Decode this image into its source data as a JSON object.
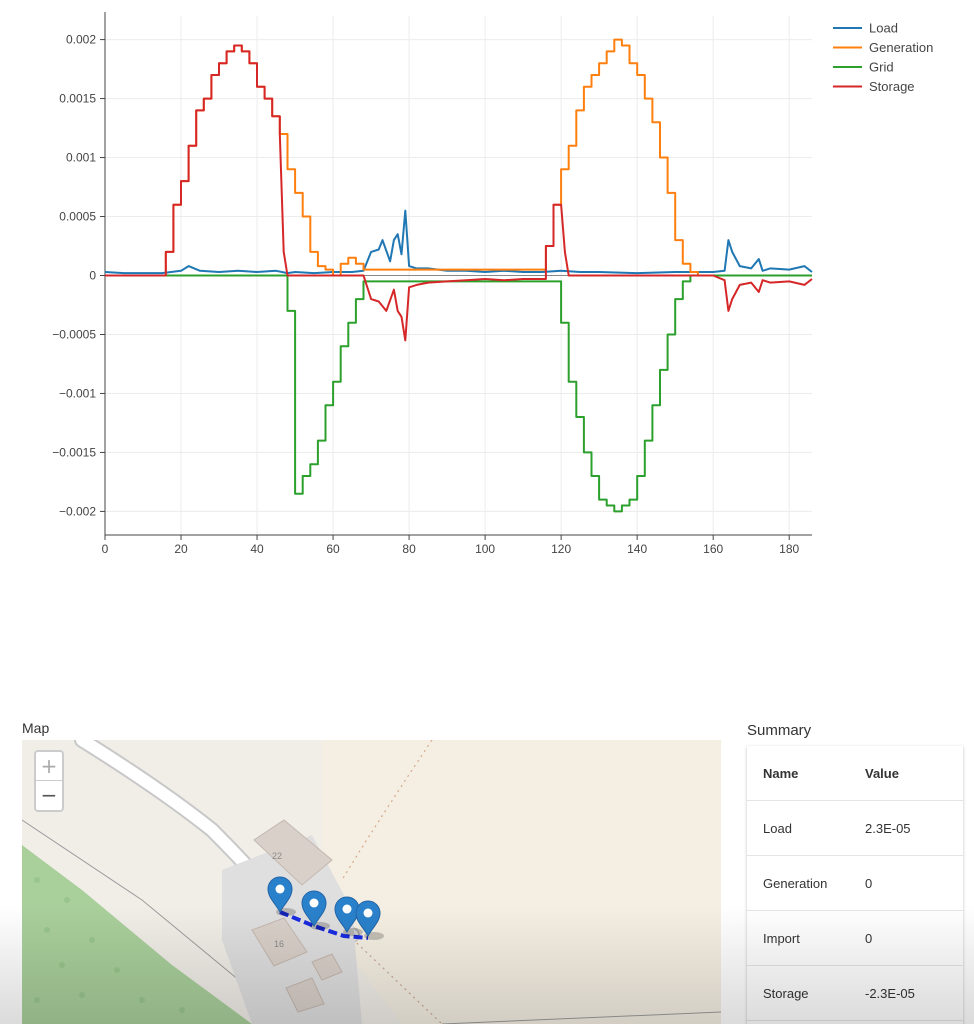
{
  "chart_data": {
    "type": "line",
    "title": "",
    "xlabel": "",
    "ylabel": "",
    "xlim": [
      0,
      186
    ],
    "ylim": [
      -0.0022,
      0.0022
    ],
    "x_ticks": [
      0,
      20,
      40,
      60,
      80,
      100,
      120,
      140,
      160,
      180
    ],
    "y_ticks": [
      0.002,
      0.0015,
      0.001,
      0.0005,
      0,
      -0.0005,
      -0.001,
      -0.0015,
      -0.002
    ],
    "y_tick_labels": [
      "0.002",
      "0.0015",
      "0.001",
      "0.0005",
      "0",
      "−0.0005",
      "−0.001",
      "−0.0015",
      "−0.002"
    ],
    "x_tick_labels": [
      "0",
      "20",
      "40",
      "60",
      "80",
      "100",
      "120",
      "140",
      "160",
      "180"
    ],
    "grid": true,
    "legend_position": "top-right",
    "series": [
      {
        "name": "Load",
        "color": "#1f77b4",
        "x": [
          0,
          5,
          10,
          15,
          20,
          22,
          25,
          30,
          35,
          40,
          45,
          48,
          50,
          55,
          60,
          65,
          68,
          70,
          72,
          73,
          75,
          76,
          77,
          78,
          79,
          80,
          82,
          85,
          90,
          95,
          100,
          105,
          110,
          115,
          120,
          125,
          130,
          140,
          150,
          160,
          163,
          164,
          165,
          167,
          170,
          172,
          173,
          175,
          180,
          184,
          186
        ],
        "y": [
          3e-05,
          2e-05,
          2e-05,
          2e-05,
          4e-05,
          8e-05,
          4e-05,
          3e-05,
          4e-05,
          3e-05,
          4e-05,
          2e-05,
          3e-05,
          2e-05,
          3e-05,
          3e-05,
          4e-05,
          0.0002,
          0.00022,
          0.0003,
          0.00012,
          0.0003,
          0.00035,
          0.00018,
          0.00055,
          8e-05,
          6e-05,
          6e-05,
          4e-05,
          4e-05,
          3e-05,
          4e-05,
          3e-05,
          3e-05,
          4e-05,
          3e-05,
          3e-05,
          2e-05,
          3e-05,
          3e-05,
          4e-05,
          0.0003,
          0.0002,
          8e-05,
          6e-05,
          0.00014,
          4e-05,
          6e-05,
          5e-05,
          8e-05,
          3e-05
        ]
      },
      {
        "name": "Generation",
        "color": "#ff7f0e",
        "x": [
          0,
          16,
          16,
          18,
          18,
          20,
          20,
          22,
          22,
          24,
          24,
          26,
          26,
          28,
          28,
          30,
          30,
          32,
          32,
          34,
          34,
          36,
          36,
          38,
          38,
          40,
          40,
          42,
          42,
          44,
          44,
          46,
          46,
          48,
          48,
          50,
          50,
          52,
          52,
          54,
          54,
          56,
          56,
          58,
          58,
          60,
          60,
          62,
          62,
          64,
          64,
          66,
          66,
          68,
          68,
          70,
          114,
          116,
          116,
          118,
          118,
          120,
          120,
          122,
          122,
          124,
          124,
          126,
          126,
          128,
          128,
          130,
          130,
          132,
          132,
          134,
          134,
          136,
          136,
          138,
          138,
          140,
          140,
          142,
          142,
          144,
          144,
          146,
          146,
          148,
          148,
          150,
          150,
          152,
          152,
          154,
          154,
          156,
          156,
          158,
          158,
          160,
          160,
          162,
          162,
          164,
          164,
          186
        ],
        "y": [
          0,
          0,
          0.0002,
          0.0002,
          0.0006,
          0.0006,
          0.0008,
          0.0008,
          0.0011,
          0.0011,
          0.0014,
          0.0014,
          0.0015,
          0.0015,
          0.0017,
          0.0017,
          0.0018,
          0.0018,
          0.0019,
          0.0019,
          0.00195,
          0.00195,
          0.0019,
          0.0019,
          0.0018,
          0.0018,
          0.0016,
          0.0016,
          0.0015,
          0.0015,
          0.00135,
          0.00135,
          0.0012,
          0.0012,
          0.0009,
          0.0009,
          0.0007,
          0.0007,
          0.0005,
          0.0005,
          0.0002,
          0.0002,
          8e-05,
          8e-05,
          5e-05,
          5e-05,
          0,
          0,
          0.0001,
          0.0001,
          0.00015,
          0.00015,
          0.0001,
          0.0001,
          5e-05,
          5e-05,
          5e-05,
          5e-05,
          0.00025,
          0.00025,
          0.0006,
          0.0006,
          0.0009,
          0.0009,
          0.0011,
          0.0011,
          0.0014,
          0.0014,
          0.0016,
          0.0016,
          0.0017,
          0.0017,
          0.0018,
          0.0018,
          0.0019,
          0.0019,
          0.002,
          0.002,
          0.00195,
          0.00195,
          0.0018,
          0.0018,
          0.0017,
          0.0017,
          0.0015,
          0.0015,
          0.0013,
          0.0013,
          0.001,
          0.001,
          0.0007,
          0.0007,
          0.0003,
          0.0003,
          0.0001,
          0.0001,
          3e-05,
          3e-05,
          0,
          0,
          0,
          0,
          0,
          0,
          0,
          0,
          0,
          0
        ]
      },
      {
        "name": "Grid",
        "color": "#2ca02c",
        "x": [
          0,
          48,
          48,
          50,
          50,
          52,
          52,
          54,
          54,
          56,
          56,
          58,
          58,
          60,
          60,
          62,
          62,
          64,
          64,
          66,
          66,
          68,
          68,
          70,
          120,
          120,
          122,
          122,
          124,
          124,
          126,
          126,
          128,
          128,
          130,
          130,
          132,
          132,
          134,
          134,
          136,
          136,
          138,
          138,
          140,
          140,
          142,
          142,
          144,
          144,
          146,
          146,
          148,
          148,
          150,
          150,
          152,
          152,
          154,
          154,
          156,
          156,
          158,
          158,
          160,
          160,
          162,
          162,
          164,
          164,
          186
        ],
        "y": [
          0,
          0,
          -0.0003,
          -0.0003,
          -0.00185,
          -0.00185,
          -0.0017,
          -0.0017,
          -0.0016,
          -0.0016,
          -0.0014,
          -0.0014,
          -0.0011,
          -0.0011,
          -0.0009,
          -0.0009,
          -0.0006,
          -0.0006,
          -0.0004,
          -0.0004,
          -0.0002,
          -0.0002,
          -5e-05,
          -5e-05,
          -5e-05,
          -0.0004,
          -0.0004,
          -0.0009,
          -0.0009,
          -0.0012,
          -0.0012,
          -0.0015,
          -0.0015,
          -0.0017,
          -0.0017,
          -0.0019,
          -0.0019,
          -0.00195,
          -0.00195,
          -0.002,
          -0.002,
          -0.00195,
          -0.00195,
          -0.0019,
          -0.0019,
          -0.0017,
          -0.0017,
          -0.0014,
          -0.0014,
          -0.0011,
          -0.0011,
          -0.0008,
          -0.0008,
          -0.0005,
          -0.0005,
          -0.0002,
          -0.0002,
          -5e-05,
          -5e-05,
          0,
          0,
          0,
          0,
          0,
          0,
          0,
          0,
          0,
          0,
          0,
          0
        ]
      },
      {
        "name": "Storage",
        "color": "#d62728",
        "x": [
          0,
          16,
          16,
          18,
          18,
          20,
          20,
          22,
          22,
          24,
          24,
          26,
          26,
          28,
          28,
          30,
          30,
          32,
          32,
          34,
          34,
          36,
          36,
          38,
          38,
          40,
          40,
          42,
          42,
          44,
          44,
          46,
          46,
          47,
          48,
          68,
          70,
          72,
          74,
          76,
          77,
          78,
          79,
          80,
          82,
          85,
          90,
          95,
          100,
          105,
          110,
          114,
          116,
          116,
          118,
          118,
          120,
          121,
          122,
          160,
          163,
          164,
          165,
          167,
          170,
          172,
          173,
          175,
          180,
          184,
          186
        ],
        "y": [
          0,
          0,
          0.0002,
          0.0002,
          0.0006,
          0.0006,
          0.0008,
          0.0008,
          0.0011,
          0.0011,
          0.0014,
          0.0014,
          0.0015,
          0.0015,
          0.0017,
          0.0017,
          0.0018,
          0.0018,
          0.0019,
          0.0019,
          0.00195,
          0.00195,
          0.0019,
          0.0019,
          0.0018,
          0.0018,
          0.0016,
          0.0016,
          0.0015,
          0.0015,
          0.00135,
          0.00135,
          0.0012,
          0.0002,
          0,
          0,
          -0.0002,
          -0.00022,
          -0.0003,
          -0.00012,
          -0.0003,
          -0.00035,
          -0.00055,
          -0.0001,
          -8e-05,
          -6e-05,
          -5e-05,
          -4e-05,
          -3e-05,
          -4e-05,
          -3e-05,
          -3e-05,
          -3e-05,
          0.00025,
          0.00025,
          0.0006,
          0.0006,
          0.0002,
          0,
          0,
          -4e-05,
          -0.0003,
          -0.0002,
          -8e-05,
          -6e-05,
          -0.00014,
          -4e-05,
          -6e-05,
          -5e-05,
          -8e-05,
          -3e-05
        ]
      }
    ]
  },
  "map": {
    "title": "Map",
    "zoom_in_label": "+",
    "zoom_out_label": "−",
    "building_labels": [
      "22",
      "16"
    ],
    "marker_icon": "map-marker-icon"
  },
  "summary": {
    "title": "Summary",
    "header": {
      "name": "Name",
      "value": "Value"
    },
    "rows": [
      {
        "name": "Load",
        "value": "2.3E-05"
      },
      {
        "name": "Generation",
        "value": "0"
      },
      {
        "name": "Import",
        "value": "0"
      },
      {
        "name": "Storage",
        "value": "-2.3E-05"
      }
    ]
  }
}
